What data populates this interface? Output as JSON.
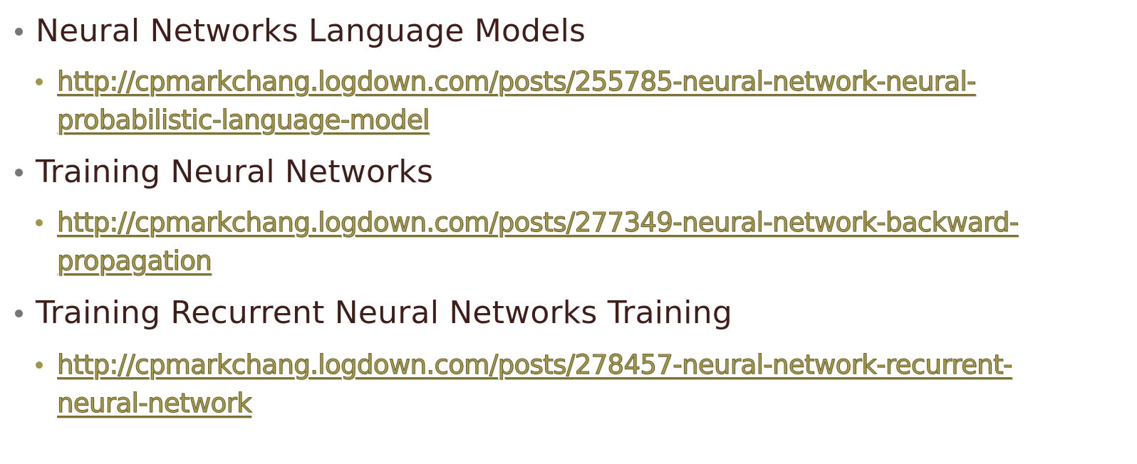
{
  "outline": {
    "items": [
      {
        "topic": "Neural Networks Language Models",
        "link_line1": "http://cpmarkchang.logdown.com/posts/255785-neural-network-neural-",
        "link_line2": "probabilistic-language-model"
      },
      {
        "topic": "Training Neural Networks",
        "link_line1": "http://cpmarkchang.logdown.com/posts/277349-neural-network-backward-",
        "link_line2": "propagation"
      },
      {
        "topic": "Training Recurrent Neural Networks Training",
        "link_line1": "http://cpmarkchang.logdown.com/posts/278457-neural-network-recurrent-",
        "link_line2": "neural-network"
      }
    ]
  },
  "colors": {
    "topic_text": "#3f1f1c",
    "link_text": "#a59a52",
    "topic_bullet": "#777777",
    "link_bullet": "#a0954f"
  }
}
